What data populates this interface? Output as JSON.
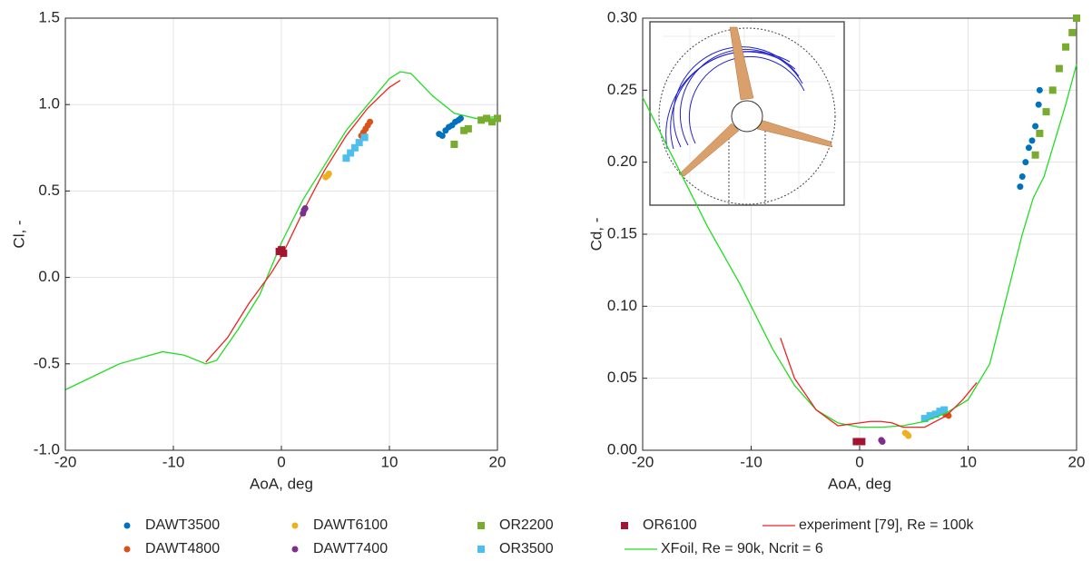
{
  "chart_data": [
    {
      "type": "scatter",
      "xlabel": "AoA, deg",
      "ylabel": "Cl, -",
      "xlim": [
        -20,
        20
      ],
      "ylim": [
        -1.0,
        1.5
      ],
      "xticks": [
        -20,
        -10,
        0,
        10,
        20
      ],
      "yticks": [
        {
          "value": -1.0,
          "label": "-1.0"
        },
        -0.5,
        {
          "value": 0.0,
          "label": "0.0"
        },
        0.5,
        {
          "value": 1.0,
          "label": "1.0"
        },
        1.5
      ],
      "grid": true,
      "series": [
        {
          "name": "DAWT3500",
          "color": "#0072BD",
          "marker": "circle",
          "x": [
            14.6,
            14.9,
            15.2,
            15.5,
            15.8,
            16.1,
            16.4,
            16.6
          ],
          "values": [
            0.83,
            0.82,
            0.85,
            0.87,
            0.88,
            0.9,
            0.91,
            0.92
          ]
        },
        {
          "name": "DAWT4800",
          "color": "#D95319",
          "marker": "circle",
          "x": [
            7.4,
            7.6,
            7.8,
            8.0,
            8.2
          ],
          "values": [
            0.82,
            0.84,
            0.86,
            0.88,
            0.9
          ]
        },
        {
          "name": "DAWT6100",
          "color": "#EDB120",
          "marker": "circle",
          "x": [
            4.1,
            4.3,
            4.4
          ],
          "values": [
            0.58,
            0.59,
            0.6
          ]
        },
        {
          "name": "DAWT7400",
          "color": "#7E2F8E",
          "marker": "circle",
          "x": [
            2.0,
            2.1,
            2.2
          ],
          "values": [
            0.37,
            0.39,
            0.4
          ]
        },
        {
          "name": "OR2200",
          "color": "#77AC30",
          "marker": "square",
          "x": [
            16.0,
            16.9,
            17.3,
            18.5,
            19.0,
            19.5,
            20.0
          ],
          "values": [
            0.77,
            0.85,
            0.86,
            0.91,
            0.92,
            0.9,
            0.92
          ]
        },
        {
          "name": "OR3500",
          "color": "#4DBEEE",
          "marker": "square",
          "x": [
            6.0,
            6.4,
            6.8,
            7.2,
            7.7
          ],
          "values": [
            0.69,
            0.72,
            0.75,
            0.78,
            0.81
          ]
        },
        {
          "name": "OR6100",
          "color": "#A2142F",
          "marker": "square",
          "x": [
            -0.2,
            0.0,
            0.2
          ],
          "values": [
            0.15,
            0.16,
            0.14
          ]
        },
        {
          "name": "XFoil, Re = 90k, Ncrit = 6",
          "color": "#22DD22",
          "marker": "line",
          "x": [
            -20,
            -15,
            -11,
            -9,
            -7,
            -6,
            -4,
            -2,
            0,
            2,
            4,
            6,
            8,
            10,
            11,
            12,
            14,
            16,
            18,
            20
          ],
          "values": [
            -0.65,
            -0.5,
            -0.43,
            -0.45,
            -0.5,
            -0.48,
            -0.3,
            -0.1,
            0.2,
            0.45,
            0.65,
            0.85,
            1.0,
            1.15,
            1.19,
            1.18,
            1.05,
            0.95,
            0.92,
            0.93
          ]
        },
        {
          "name": "experiment [79], Re = 100k",
          "color": "#EE2222",
          "marker": "line",
          "x": [
            -7,
            -5,
            -3,
            -1,
            0,
            2,
            4,
            6,
            8,
            10,
            11
          ],
          "values": [
            -0.49,
            -0.35,
            -0.15,
            0.02,
            0.12,
            0.38,
            0.62,
            0.82,
            0.98,
            1.1,
            1.14
          ]
        }
      ]
    },
    {
      "type": "scatter",
      "xlabel": "AoA, deg",
      "ylabel": "Cd, -",
      "xlim": [
        -20,
        20
      ],
      "ylim": [
        0.0,
        0.3
      ],
      "xticks": [
        -20,
        -10,
        0,
        10,
        20
      ],
      "yticks": [
        {
          "value": 0.0,
          "label": "0.00"
        },
        0.05,
        {
          "value": 0.1,
          "label": "0.10"
        },
        0.15,
        {
          "value": 0.2,
          "label": "0.20"
        },
        0.25,
        {
          "value": 0.3,
          "label": "0.30"
        }
      ],
      "grid": true,
      "series": [
        {
          "color": "#0072BD",
          "marker": "circle",
          "x": [
            14.8,
            15.0,
            15.3,
            15.6,
            15.9,
            16.2,
            16.5,
            16.6
          ],
          "values": [
            0.183,
            0.19,
            0.2,
            0.21,
            0.215,
            0.225,
            0.24,
            0.25
          ]
        },
        {
          "color": "#D95319",
          "marker": "circle",
          "x": [
            7.6,
            7.9,
            8.2
          ],
          "values": [
            0.027,
            0.025,
            0.024
          ]
        },
        {
          "color": "#EDB120",
          "marker": "circle",
          "x": [
            4.2,
            4.4,
            4.5
          ],
          "values": [
            0.012,
            0.011,
            0.01
          ]
        },
        {
          "color": "#7E2F8E",
          "marker": "circle",
          "x": [
            2.0,
            2.1
          ],
          "values": [
            0.007,
            0.006
          ]
        },
        {
          "color": "#77AC30",
          "marker": "square",
          "x": [
            16.2,
            16.6,
            17.2,
            17.8,
            18.4,
            19.0,
            19.6,
            20.0
          ],
          "values": [
            0.205,
            0.22,
            0.235,
            0.25,
            0.265,
            0.28,
            0.29,
            0.3
          ]
        },
        {
          "color": "#4DBEEE",
          "marker": "square",
          "x": [
            6.0,
            6.5,
            7.0,
            7.4,
            7.8
          ],
          "values": [
            0.022,
            0.024,
            0.025,
            0.027,
            0.028
          ]
        },
        {
          "color": "#A2142F",
          "marker": "square",
          "x": [
            -0.3,
            0.0,
            0.2
          ],
          "values": [
            0.006,
            0.006,
            0.006
          ]
        },
        {
          "color": "#22DD22",
          "marker": "line",
          "x": [
            -20,
            -17,
            -14,
            -11,
            -8,
            -6,
            -4,
            -2,
            0,
            2,
            4,
            6,
            8,
            10,
            12,
            13,
            14,
            15,
            16,
            17,
            18,
            19,
            20
          ],
          "values": [
            0.245,
            0.2,
            0.155,
            0.115,
            0.07,
            0.045,
            0.028,
            0.019,
            0.016,
            0.016,
            0.017,
            0.02,
            0.026,
            0.035,
            0.06,
            0.09,
            0.12,
            0.15,
            0.175,
            0.19,
            0.215,
            0.24,
            0.268
          ]
        },
        {
          "color": "#EE2222",
          "marker": "line",
          "x": [
            -7.3,
            -6,
            -4,
            -2,
            0,
            1,
            2,
            3,
            4,
            6,
            8,
            9.5,
            10.8
          ],
          "values": [
            0.078,
            0.05,
            0.028,
            0.017,
            0.019,
            0.02,
            0.02,
            0.019,
            0.016,
            0.016,
            0.024,
            0.035,
            0.047
          ]
        }
      ]
    }
  ]
}
